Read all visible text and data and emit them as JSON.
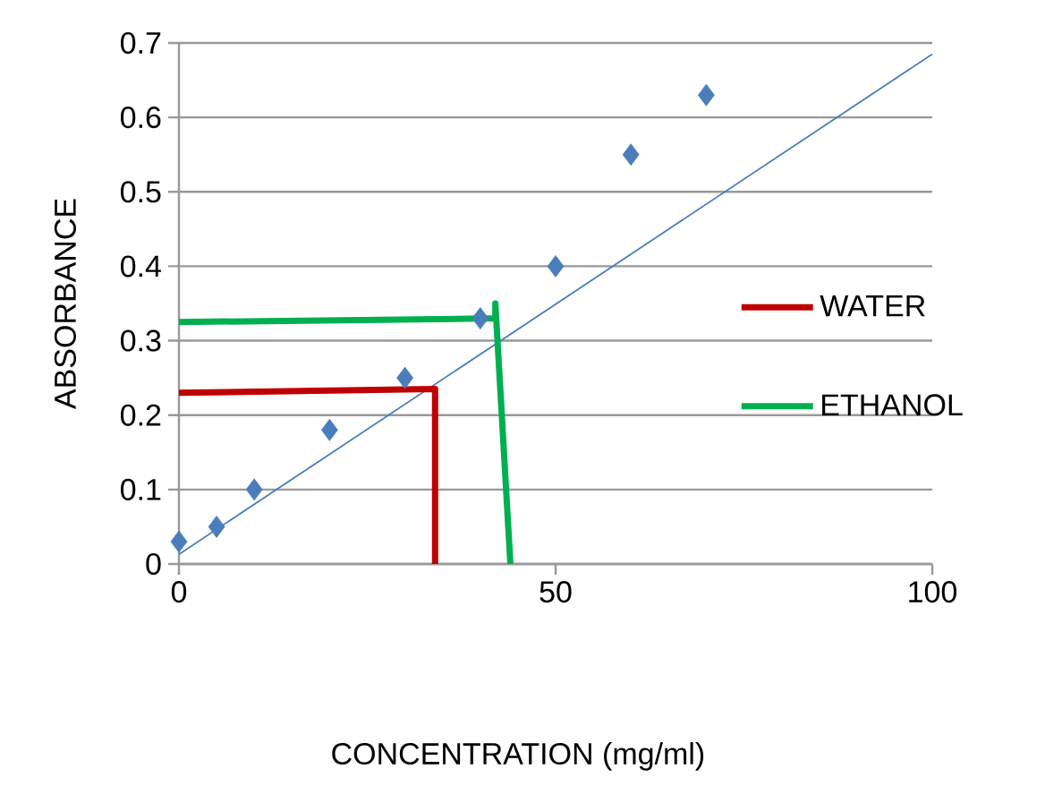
{
  "chart_data": {
    "type": "scatter",
    "xlabel": "CONCENTRATION  (mg/ml)",
    "ylabel": "ABSORBANCE",
    "series": [
      {
        "color": "#4a7ebb",
        "x": [
          0,
          5,
          10,
          20,
          30,
          40,
          50,
          60,
          70
        ],
        "values": [
          0.03,
          0.05,
          0.1,
          0.18,
          0.25,
          0.33,
          0.4,
          0.55,
          0.63
        ]
      },
      {
        "type": "line",
        "marker": "none",
        "color": "#4a7ebb",
        "x": [
          0,
          100
        ],
        "values": [
          0.013,
          0.685
        ]
      },
      {
        "type": "line",
        "marker": "none",
        "name": "WATER",
        "color": "#c00000",
        "x": [
          0,
          34,
          34
        ],
        "values": [
          0.23,
          0.235,
          0
        ]
      },
      {
        "type": "line",
        "marker": "none",
        "name": "ETHANOL",
        "color": "#00b050",
        "x": [
          0,
          42,
          42,
          44
        ],
        "values": [
          0.325,
          0.33,
          0.35,
          0
        ]
      }
    ],
    "xlim": [
      0,
      100
    ],
    "ylim": [
      0,
      0.7
    ],
    "xticks": [
      0,
      50,
      100
    ],
    "yticks": [
      0,
      0.1,
      0.2,
      0.3,
      0.4,
      0.5,
      0.6,
      0.7
    ],
    "grid": "y",
    "legend": "right",
    "marker": "diamond"
  }
}
